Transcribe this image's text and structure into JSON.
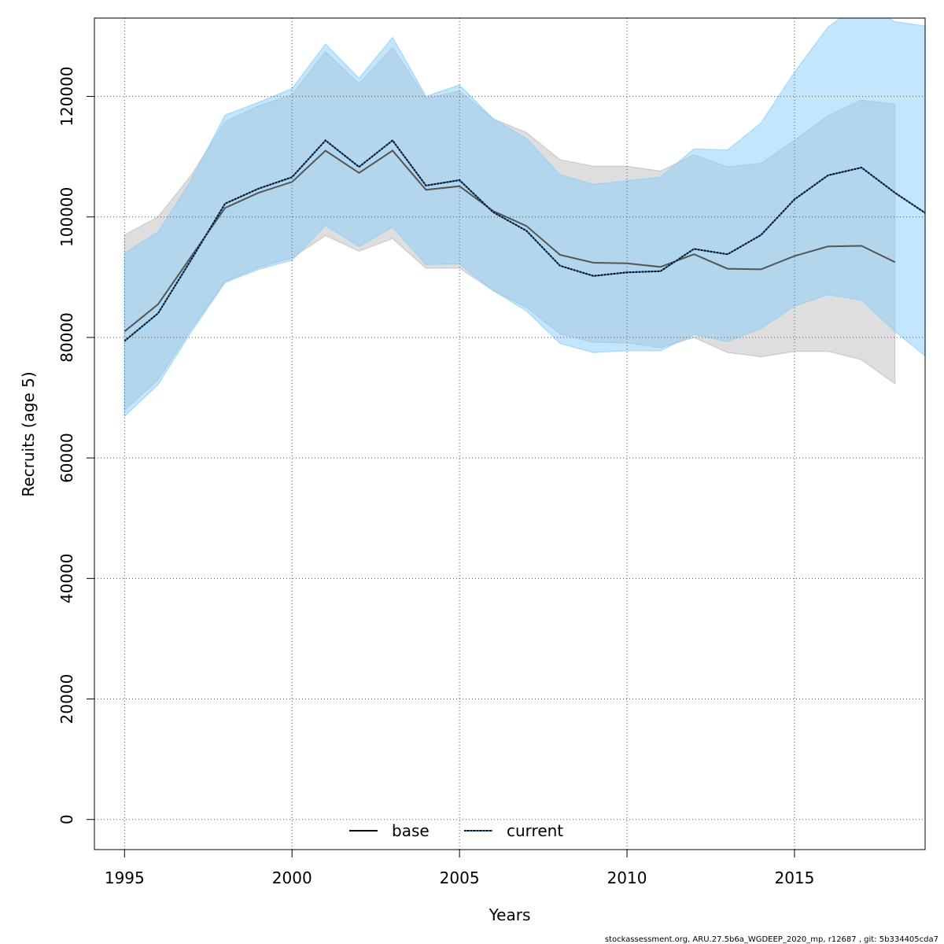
{
  "chart_data": {
    "type": "line",
    "xlabel": "Years",
    "ylabel": "Recruits (age 5)",
    "xlim": [
      1994.1,
      2018.9
    ],
    "ylim": [
      -5000,
      133000
    ],
    "x_ticks": [
      1995,
      2000,
      2005,
      2010,
      2015
    ],
    "y_ticks": [
      0,
      20000,
      40000,
      60000,
      80000,
      100000,
      120000
    ],
    "grid": true,
    "legend_position": "bottom",
    "series": [
      {
        "name": "base",
        "color": "#000000",
        "band_color": "#bebebe",
        "line_style": "solid",
        "x": [
          1995,
          1996,
          1997,
          1998,
          1999,
          2000,
          2001,
          2002,
          2003,
          2004,
          2005,
          2006,
          2007,
          2008,
          2009,
          2010,
          2011,
          2012,
          2013,
          2014,
          2015,
          2016,
          2017,
          2018
        ],
        "values": [
          81000,
          85500,
          93500,
          101500,
          104000,
          105800,
          111000,
          107300,
          111000,
          104500,
          105100,
          101000,
          98500,
          93700,
          92400,
          92300,
          91700,
          93800,
          91400,
          91300,
          93500,
          95100,
          95200,
          92500
        ],
        "lower": [
          67900,
          73000,
          81500,
          89300,
          91600,
          93200,
          96900,
          94300,
          96400,
          91500,
          91500,
          87800,
          85000,
          80600,
          79200,
          79100,
          78300,
          80000,
          77500,
          76800,
          77700,
          77700,
          76300,
          72300
        ],
        "upper": [
          97000,
          100000,
          107000,
          115800,
          118400,
          120300,
          127400,
          122100,
          128100,
          119700,
          120900,
          116300,
          114000,
          109500,
          108400,
          108400,
          107600,
          110300,
          108300,
          108900,
          112700,
          116800,
          119400,
          118700
        ]
      },
      {
        "name": "current",
        "color": "#000000",
        "band_color": "#87cefa",
        "line_style": "dotted",
        "x": [
          1995,
          1996,
          1997,
          1998,
          1999,
          2000,
          2001,
          2002,
          2003,
          2004,
          2005,
          2006,
          2007,
          2008,
          2009,
          2010,
          2011,
          2012,
          2013,
          2014,
          2015,
          2016,
          2017,
          2018,
          2019
        ],
        "values": [
          79400,
          84000,
          93000,
          102200,
          104700,
          106600,
          112700,
          108300,
          112700,
          105200,
          106100,
          100800,
          97700,
          91900,
          90200,
          90800,
          91000,
          94700,
          93800,
          97000,
          102900,
          106900,
          108200,
          104000,
          100300
        ],
        "lower": [
          66900,
          72200,
          81000,
          89100,
          91300,
          92800,
          98600,
          95100,
          98300,
          92100,
          92200,
          87800,
          84400,
          79000,
          77500,
          77800,
          77800,
          80500,
          79300,
          81500,
          85200,
          87100,
          86200,
          81000,
          76500
        ],
        "upper": [
          94000,
          97500,
          106200,
          116900,
          119000,
          121300,
          128700,
          123000,
          129800,
          120000,
          121900,
          116300,
          113000,
          107000,
          105400,
          106000,
          106600,
          111300,
          111100,
          115600,
          124000,
          131500,
          135500,
          132400,
          131600
        ]
      }
    ]
  },
  "footer": "stockassessment.org, ARU.27.5b6a_WGDEEP_2020_mp, r12687 , git: 5b334405cda7"
}
